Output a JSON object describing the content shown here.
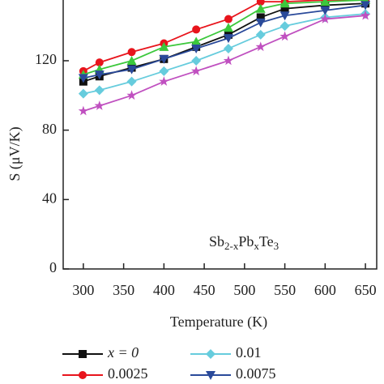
{
  "chart_data": {
    "type": "line",
    "x_label": "Temperature (K)",
    "y_label": "S (μV/K)",
    "annotation": [
      "Sb",
      "2-x",
      "Pb",
      "x",
      "Te",
      "3"
    ],
    "x": [
      300,
      320,
      360,
      400,
      440,
      480,
      520,
      550,
      600,
      650
    ],
    "xlim": [
      275,
      664
    ],
    "xticks": [
      300,
      350,
      400,
      450,
      500,
      550,
      600,
      650
    ],
    "ylim": [
      0,
      155
    ],
    "yticks": [
      0,
      40,
      80,
      120
    ],
    "series": [
      {
        "name": "x = 0",
        "color": "#111111",
        "marker": "square",
        "values": [
          108,
          111,
          116,
          121,
          128,
          135,
          145,
          150,
          152,
          153
        ]
      },
      {
        "name": "0.0025",
        "color": "#e8141c",
        "marker": "circle",
        "values": [
          114,
          119,
          125,
          130,
          138,
          144,
          154,
          154,
          155,
          155
        ]
      },
      {
        "color": "#3cc83c",
        "marker": "triangle-up",
        "values": [
          112,
          115,
          120,
          128,
          131,
          139,
          150,
          153,
          154,
          155
        ]
      },
      {
        "name": "0.01",
        "color": "#66ccdd",
        "marker": "diamond",
        "values": [
          101,
          103,
          108,
          114,
          120,
          127,
          135,
          140,
          145,
          147
        ]
      },
      {
        "name": "0.0075",
        "color": "#2a4a9a",
        "marker": "triangle-down",
        "values": [
          110,
          112,
          115,
          121,
          127,
          133,
          142,
          146,
          149,
          152
        ]
      },
      {
        "color": "#c050c0",
        "marker": "star",
        "values": [
          91,
          94,
          100,
          108,
          114,
          120,
          128,
          134,
          144,
          146
        ]
      }
    ]
  }
}
